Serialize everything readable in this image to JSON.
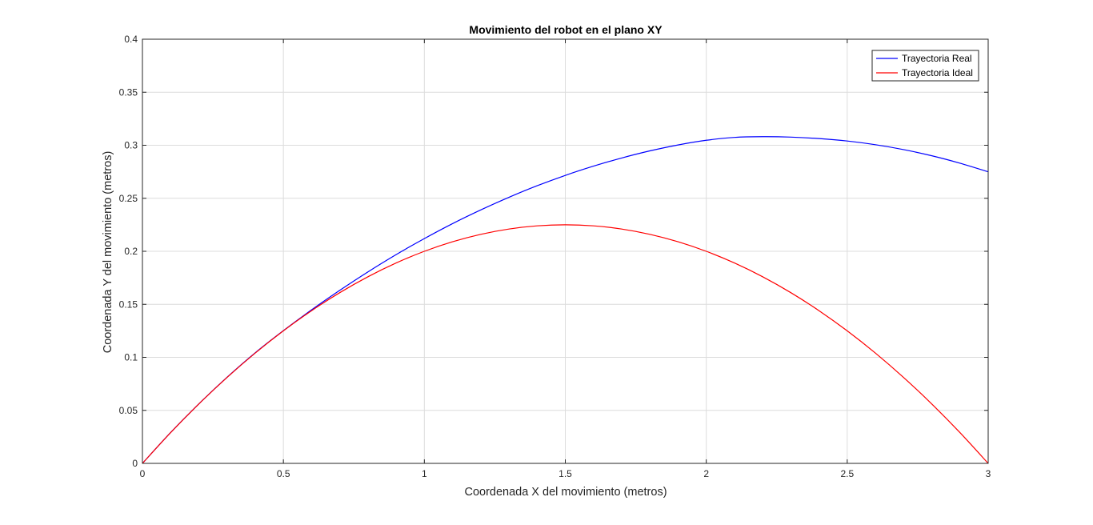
{
  "chart_data": {
    "type": "line",
    "title": "Movimiento del robot en el plano XY",
    "xlabel": "Coordenada X del movimiento (metros)",
    "ylabel": "Coordenada Y del movimiento (metros)",
    "xlim": [
      0,
      3
    ],
    "ylim": [
      0,
      0.4
    ],
    "xticks": [
      0,
      0.5,
      1,
      1.5,
      2,
      2.5,
      3
    ],
    "xtick_labels": [
      "0",
      "0.5",
      "1",
      "1.5",
      "2",
      "2.5",
      "3"
    ],
    "yticks": [
      0,
      0.05,
      0.1,
      0.15,
      0.2,
      0.25,
      0.3,
      0.35,
      0.4
    ],
    "ytick_labels": [
      "0",
      "0.05",
      "0.1",
      "0.15",
      "0.2",
      "0.25",
      "0.3",
      "0.35",
      "0.4"
    ],
    "grid": true,
    "legend": {
      "position": "top-right"
    },
    "series": [
      {
        "name": "Trayectoria Real",
        "color": "#0000ff",
        "x": [
          0,
          0.1,
          0.2,
          0.3,
          0.4,
          0.5,
          0.6,
          0.7,
          0.8,
          0.9,
          1.0,
          1.1,
          1.2,
          1.3,
          1.4,
          1.5,
          1.6,
          1.7,
          1.8,
          1.9,
          2.0,
          2.1,
          2.2,
          2.3,
          2.4,
          2.5,
          2.6,
          2.7,
          2.8,
          2.9,
          3.0
        ],
        "y": [
          0,
          0.0291,
          0.0561,
          0.0812,
          0.1043,
          0.1252,
          0.1448,
          0.1632,
          0.1806,
          0.1969,
          0.212,
          0.2261,
          0.239,
          0.2509,
          0.2618,
          0.2716,
          0.2803,
          0.288,
          0.2947,
          0.3003,
          0.3047,
          0.3074,
          0.3081,
          0.3077,
          0.3063,
          0.304,
          0.3005,
          0.2959,
          0.2901,
          0.2831,
          0.275
        ]
      },
      {
        "name": "Trayectoria Ideal",
        "color": "#ff0000",
        "x": [
          0,
          0.1,
          0.2,
          0.3,
          0.4,
          0.5,
          0.6,
          0.7,
          0.8,
          0.9,
          1.0,
          1.1,
          1.2,
          1.3,
          1.4,
          1.5,
          1.6,
          1.7,
          1.8,
          1.9,
          2.0,
          2.1,
          2.2,
          2.3,
          2.4,
          2.5,
          2.6,
          2.7,
          2.8,
          2.9,
          3.0
        ],
        "y": [
          0,
          0.029,
          0.056,
          0.081,
          0.104,
          0.125,
          0.144,
          0.161,
          0.176,
          0.189,
          0.2,
          0.209,
          0.216,
          0.221,
          0.224,
          0.225,
          0.224,
          0.221,
          0.216,
          0.209,
          0.2,
          0.189,
          0.176,
          0.161,
          0.144,
          0.125,
          0.104,
          0.081,
          0.056,
          0.029,
          0
        ]
      }
    ]
  }
}
